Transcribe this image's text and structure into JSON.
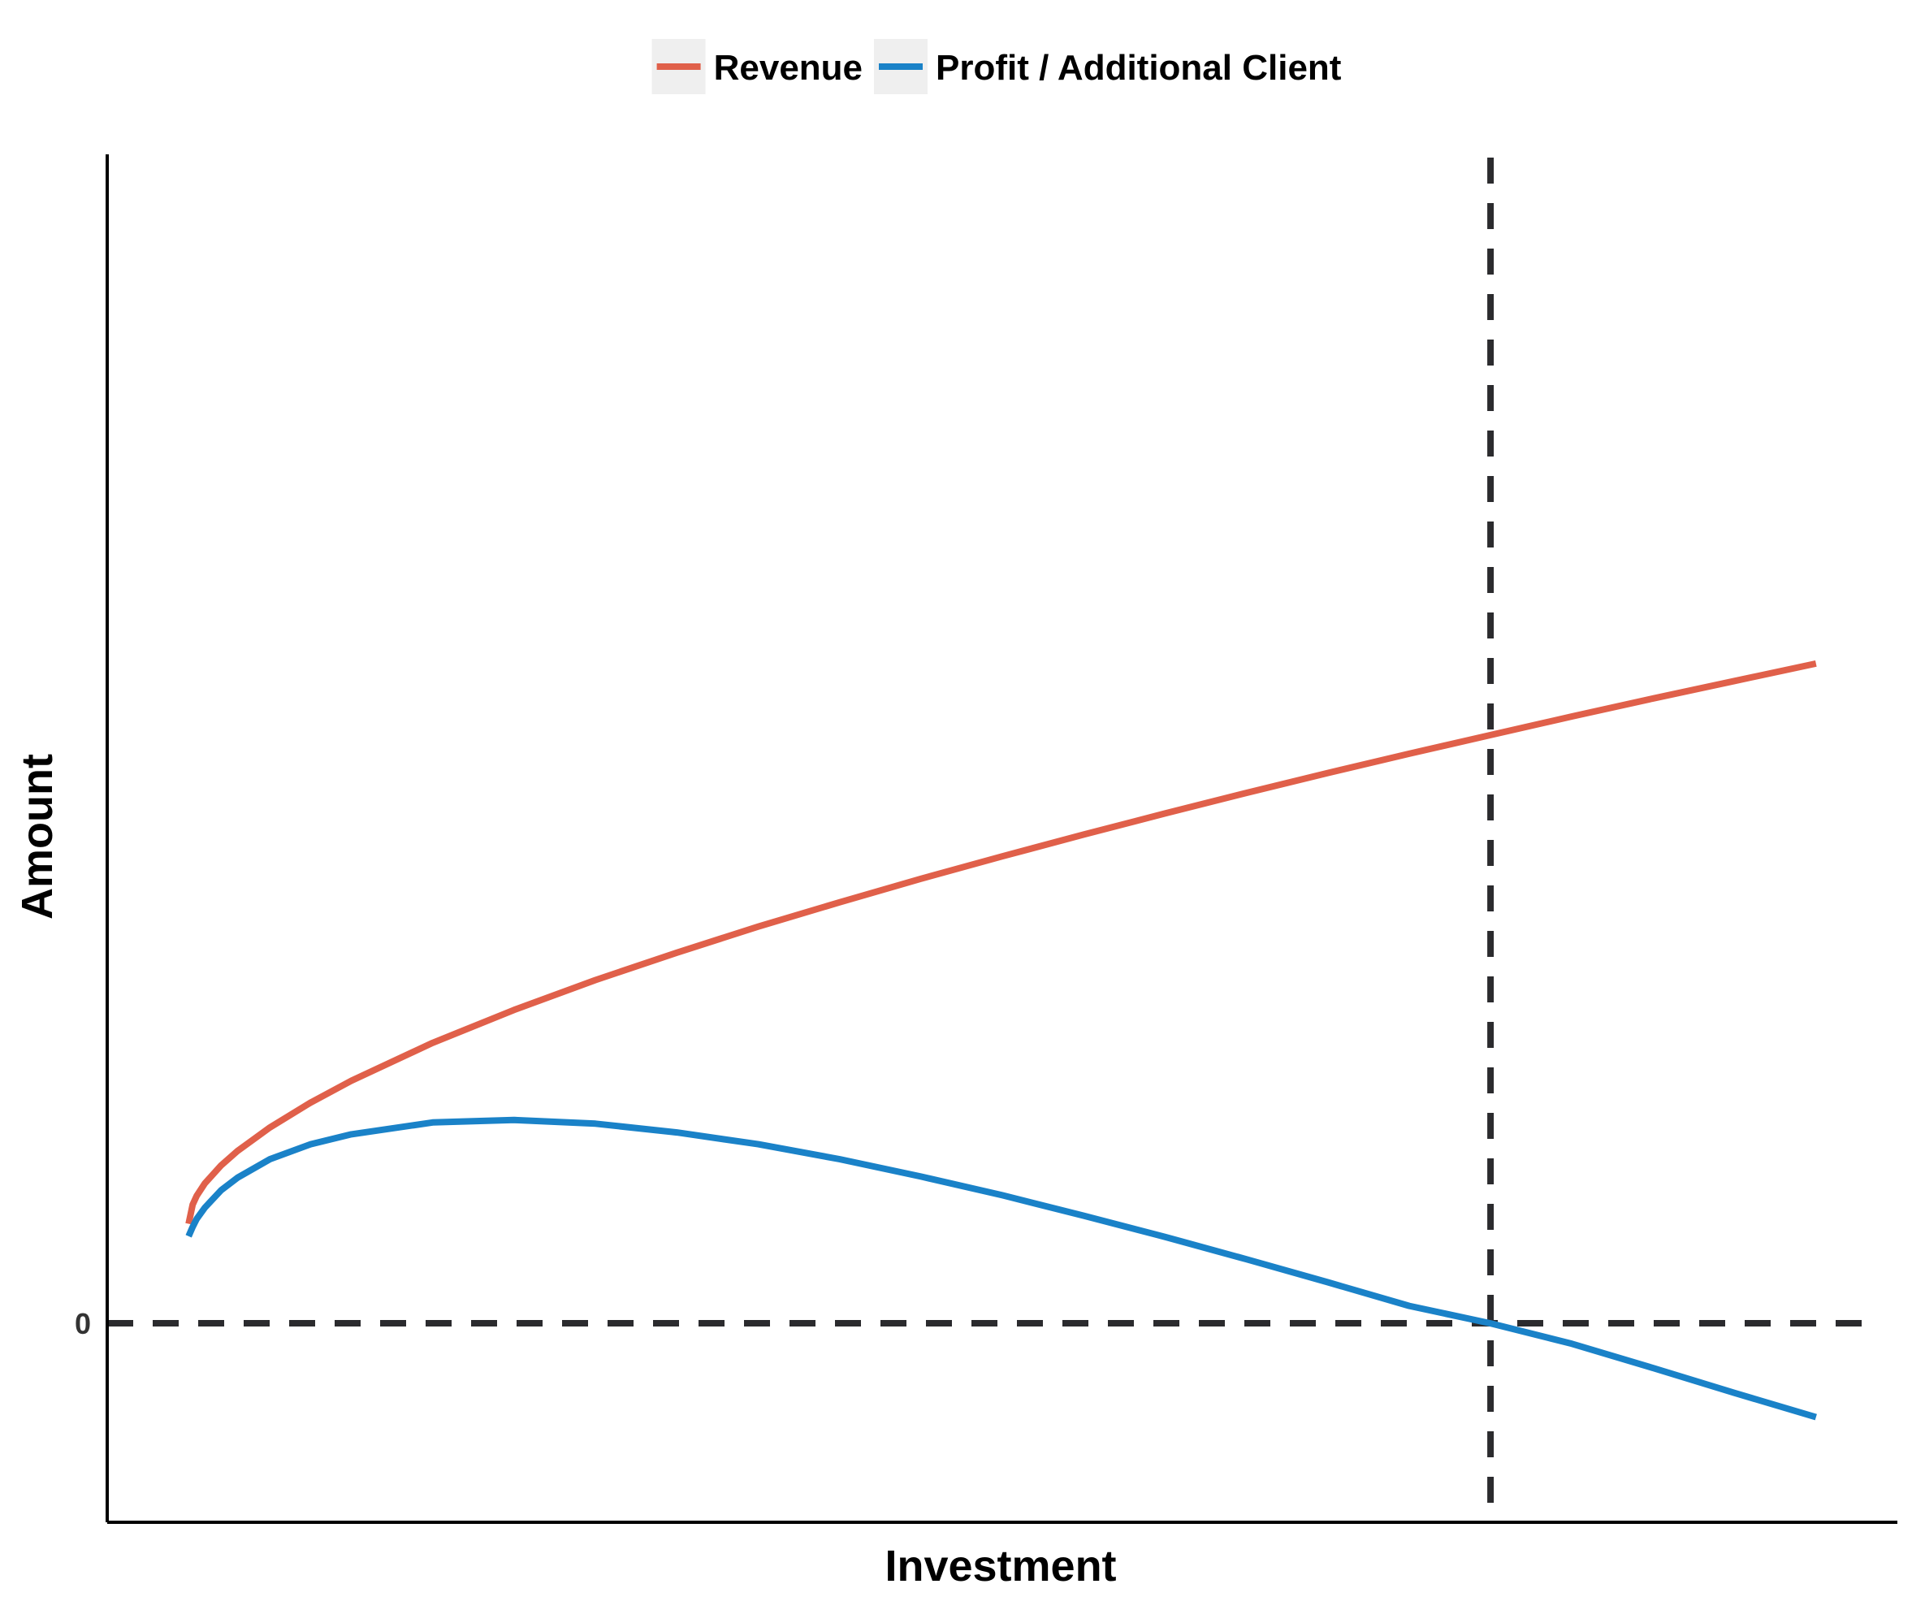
{
  "chart_data": {
    "type": "line",
    "title": "",
    "xlabel": "Investment",
    "ylabel": "Amount",
    "grid": false,
    "legend_position": "top",
    "x_tick_labels": [],
    "y_ticks": [
      {
        "value": 0,
        "label": "0"
      }
    ],
    "xlim": [
      -0.05,
      1.05
    ],
    "ylim": [
      -0.32,
      1.88
    ],
    "reference_lines": [
      {
        "orientation": "horizontal",
        "value": 0,
        "style": "dashed"
      },
      {
        "orientation": "vertical",
        "value": 0.8,
        "style": "dashed"
      }
    ],
    "series": [
      {
        "name": "Revenue",
        "color": "#e0604a",
        "x": [
          0,
          0.0025,
          0.005,
          0.01,
          0.02,
          0.03,
          0.05,
          0.075,
          0.1,
          0.15,
          0.2,
          0.25,
          0.3,
          0.35,
          0.4,
          0.45,
          0.5,
          0.55,
          0.6,
          0.65,
          0.7,
          0.75,
          0.8,
          0.85,
          0.9,
          0.95,
          1.0
        ],
        "values": [
          0.16,
          0.191,
          0.205,
          0.225,
          0.254,
          0.277,
          0.315,
          0.355,
          0.39,
          0.451,
          0.504,
          0.552,
          0.596,
          0.638,
          0.677,
          0.715,
          0.751,
          0.786,
          0.82,
          0.853,
          0.885,
          0.916,
          0.946,
          0.976,
          1.005,
          1.033,
          1.061
        ]
      },
      {
        "name": "Profit / Additional Client",
        "color": "#1a82c8",
        "x": [
          0,
          0.0025,
          0.005,
          0.01,
          0.02,
          0.03,
          0.05,
          0.075,
          0.1,
          0.15,
          0.2,
          0.25,
          0.3,
          0.35,
          0.4,
          0.45,
          0.5,
          0.55,
          0.6,
          0.65,
          0.7,
          0.75,
          0.8,
          0.85,
          0.9,
          0.95,
          1.0
        ],
        "values": [
          0.14,
          0.155,
          0.168,
          0.186,
          0.214,
          0.234,
          0.264,
          0.288,
          0.304,
          0.323,
          0.327,
          0.321,
          0.307,
          0.288,
          0.264,
          0.236,
          0.206,
          0.173,
          0.139,
          0.103,
          0.066,
          0.028,
          0.0,
          -0.033,
          -0.072,
          -0.112,
          -0.151
        ]
      }
    ]
  }
}
